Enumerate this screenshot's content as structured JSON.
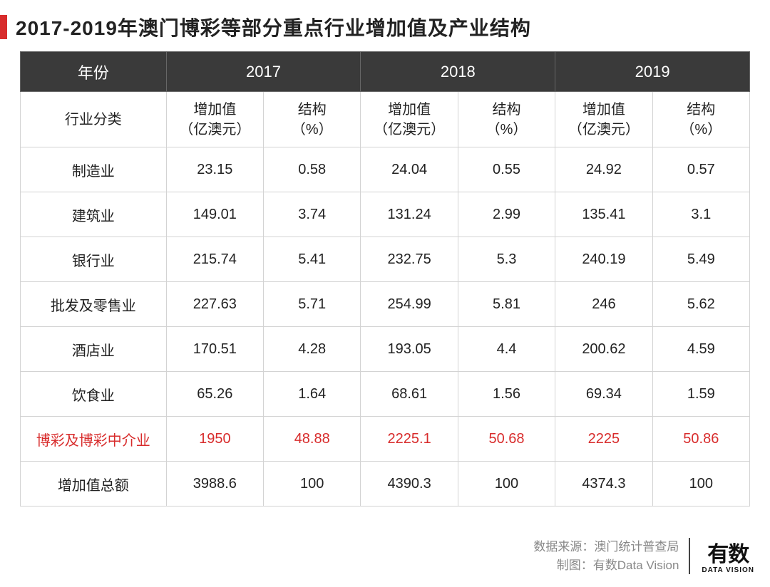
{
  "title": "2017-2019年澳门博彩等部分重点行业增加值及产业结构",
  "colors": {
    "accent": "#d82c2c",
    "header_bg": "#3a3a3a",
    "header_fg": "#ffffff",
    "border": "#d3d3d3",
    "text": "#222222",
    "footer_text": "#888888"
  },
  "table": {
    "type": "table",
    "font_family": "Microsoft YaHei",
    "header_fontsize": 22,
    "subheader_fontsize": 20,
    "cell_fontsize": 20,
    "col1_label": "年份",
    "years": [
      "2017",
      "2018",
      "2019"
    ],
    "subheader_label": "行业分类",
    "subcols": [
      "增加值\n（亿澳元）",
      "结构\n（%）"
    ],
    "highlight_row_index": 6,
    "rows": [
      {
        "label": "制造业",
        "cells": [
          "23.15",
          "0.58",
          "24.04",
          "0.55",
          "24.92",
          "0.57"
        ]
      },
      {
        "label": "建筑业",
        "cells": [
          "149.01",
          "3.74",
          "131.24",
          "2.99",
          "135.41",
          "3.1"
        ]
      },
      {
        "label": "银行业",
        "cells": [
          "215.74",
          "5.41",
          "232.75",
          "5.3",
          "240.19",
          "5.49"
        ]
      },
      {
        "label": "批发及零售业",
        "cells": [
          "227.63",
          "5.71",
          "254.99",
          "5.81",
          "246",
          "5.62"
        ]
      },
      {
        "label": "酒店业",
        "cells": [
          "170.51",
          "4.28",
          "193.05",
          "4.4",
          "200.62",
          "4.59"
        ]
      },
      {
        "label": "饮食业",
        "cells": [
          "65.26",
          "1.64",
          "68.61",
          "1.56",
          "69.34",
          "1.59"
        ]
      },
      {
        "label": "博彩及博彩中介业",
        "cells": [
          "1950",
          "48.88",
          "2225.1",
          "50.68",
          "2225",
          "50.86"
        ]
      },
      {
        "label": "增加值总额",
        "cells": [
          "3988.6",
          "100",
          "4390.3",
          "100",
          "4374.3",
          "100"
        ]
      }
    ]
  },
  "footer": {
    "source_label": "数据来源：",
    "source_value": "澳门统计普查局",
    "credit_label": "制图：",
    "credit_value": "有数Data Vision"
  },
  "logo": {
    "cn": "有数",
    "en": "DATA VISION"
  }
}
